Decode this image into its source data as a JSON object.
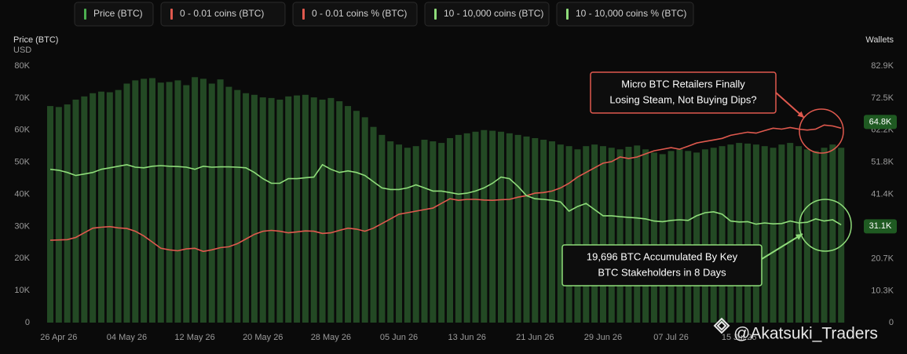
{
  "chart_data": {
    "type": "bar",
    "y_title": "Price (BTC)",
    "y_unit": "USD",
    "y2_title": "Wallets",
    "ylim": [
      0,
      80000
    ],
    "yticks": [
      0,
      {
        "value": 10000,
        "label": "10K"
      },
      {
        "value": 20000,
        "label": "20K"
      },
      {
        "value": 30000,
        "label": "30K"
      },
      {
        "value": 40000,
        "label": "40K"
      },
      {
        "value": 50000,
        "label": "50K"
      },
      {
        "value": 60000,
        "label": "60K"
      },
      {
        "value": 70000,
        "label": "70K"
      },
      {
        "value": 80000,
        "label": "80K"
      }
    ],
    "y2lim": [
      0,
      82900
    ],
    "y2ticks": [
      0,
      {
        "value": 10300,
        "label": "10.3K"
      },
      {
        "value": 20700,
        "label": "20.7K"
      },
      {
        "value": 31100,
        "label": "31.1K"
      },
      {
        "value": 41400,
        "label": "41.4K"
      },
      {
        "value": 51800,
        "label": "51.8K"
      },
      {
        "value": 62200,
        "label": "62.2K"
      },
      {
        "value": 72500,
        "label": "72.5K"
      },
      {
        "value": 82900,
        "label": "82.9K"
      }
    ],
    "y2_markers": [
      {
        "value": 64800,
        "label": "64.8K"
      },
      {
        "value": 31100,
        "label": "31.1K"
      }
    ],
    "categories": [
      null,
      "26 Apr 26",
      null,
      null,
      null,
      null,
      null,
      null,
      null,
      "04 May 26",
      null,
      null,
      null,
      null,
      null,
      null,
      null,
      "12 May 26",
      null,
      null,
      null,
      null,
      null,
      null,
      null,
      "20 May 26",
      null,
      null,
      null,
      null,
      null,
      null,
      null,
      "28 May 26",
      null,
      null,
      null,
      null,
      null,
      null,
      null,
      "05 Jun 26",
      null,
      null,
      null,
      null,
      null,
      null,
      null,
      "13 Jun 26",
      null,
      null,
      null,
      null,
      null,
      null,
      null,
      "21 Jun 26",
      null,
      null,
      null,
      null,
      null,
      null,
      null,
      "29 Jun 26",
      null,
      null,
      null,
      null,
      null,
      null,
      null,
      "07 Jul 26",
      null,
      null,
      null,
      null,
      null,
      null,
      null,
      "15 Jul 26",
      null,
      null,
      null,
      null,
      null,
      null,
      null,
      null,
      null,
      null,
      null,
      null
    ],
    "series": [
      {
        "name": "Price (BTC)",
        "color": "#4caf50",
        "type": "bar",
        "values": [
          67500,
          67200,
          68000,
          69500,
          70500,
          71500,
          72000,
          71800,
          72500,
          74500,
          75500,
          76000,
          76200,
          74800,
          75000,
          75500,
          74000,
          76500,
          76000,
          74500,
          75800,
          73500,
          72500,
          71500,
          71000,
          70200,
          70000,
          69500,
          70500,
          70800,
          71000,
          70200,
          69500,
          70000,
          69000,
          67500,
          66000,
          64000,
          61000,
          58500,
          56500,
          55500,
          54500,
          55000,
          57000,
          56500,
          56000,
          57500,
          58500,
          59000,
          59500,
          60000,
          59800,
          59500,
          59000,
          58500,
          58000,
          57500,
          57000,
          56500,
          55500,
          55000,
          54000,
          55000,
          55500,
          55000,
          54500,
          54000,
          54800,
          55200,
          54000,
          53000,
          52500,
          53500,
          54000,
          53500,
          53000,
          54000,
          54500,
          55000,
          55500,
          56000,
          55800,
          55500,
          55000,
          54500,
          55500,
          56000,
          55000,
          54000,
          53500,
          54500,
          55500,
          54500
        ]
      },
      {
        "name": "0 - 0.01 coins (BTC)",
        "color": "#e0594e",
        "type": "line",
        "axis": "y2",
        "values": [
          26600,
          26700,
          26800,
          27500,
          29000,
          30500,
          30800,
          31000,
          30600,
          30400,
          29500,
          28000,
          26000,
          24000,
          23500,
          23200,
          23800,
          24000,
          23000,
          23500,
          24200,
          24500,
          25500,
          27000,
          28500,
          29500,
          29800,
          29500,
          29000,
          29300,
          29600,
          29500,
          28800,
          29000,
          29800,
          30500,
          30200,
          29500,
          30500,
          32000,
          33500,
          35000,
          35500,
          36000,
          36500,
          37000,
          38500,
          40000,
          39500,
          39800,
          39800,
          39600,
          39500,
          39700,
          39800,
          40500,
          41000,
          41800,
          42000,
          42500,
          43500,
          45000,
          47000,
          48500,
          50000,
          51500,
          52000,
          53500,
          53000,
          53500,
          54500,
          55500,
          56000,
          56500,
          56000,
          57000,
          58000,
          58500,
          59000,
          59500,
          60500,
          61000,
          61500,
          61200,
          62000,
          62800,
          62500,
          63000,
          62500,
          62200,
          62500,
          63800,
          63500,
          62800
        ]
      },
      {
        "name": "10 - 10,000 coins (BTC)",
        "color": "#8fdc7a",
        "type": "line",
        "axis": "y2",
        "values": [
          49500,
          49200,
          48500,
          47500,
          48000,
          48500,
          49500,
          50000,
          50500,
          51000,
          50200,
          50000,
          50500,
          50700,
          50500,
          50400,
          50200,
          49500,
          50500,
          50200,
          50300,
          50300,
          50200,
          50000,
          48500,
          46500,
          45000,
          45000,
          46500,
          46500,
          46800,
          47000,
          51000,
          49500,
          48500,
          49000,
          48500,
          47500,
          45500,
          43500,
          43000,
          43000,
          43500,
          44500,
          43500,
          42500,
          42500,
          42000,
          41500,
          41800,
          42500,
          43500,
          45000,
          47000,
          46500,
          44000,
          41000,
          40000,
          39800,
          39500,
          39000,
          36000,
          37500,
          38500,
          36500,
          34500,
          34500,
          34200,
          34000,
          33800,
          33500,
          32800,
          32600,
          33000,
          33200,
          33000,
          34500,
          35500,
          35800,
          35000,
          32800,
          32500,
          32600,
          31800,
          32200,
          31900,
          32000,
          32800,
          32200,
          32400,
          33500,
          32800,
          33200,
          31600
        ]
      }
    ],
    "legend_only": [
      {
        "name": "0 - 0.01 coins % (BTC)",
        "color": "#e0594e"
      },
      {
        "name": "10 - 10,000 coins % (BTC)",
        "color": "#8fdc7a"
      }
    ],
    "annotations": [
      {
        "lines": [
          "Micro BTC Retailers Finally",
          "Losing Steam, Not Buying Dips?"
        ],
        "color": "#e0594e"
      },
      {
        "lines": [
          "19,696 BTC Accumulated By Key",
          "BTC Stakeholders in 8 Days"
        ],
        "color": "#8fdc7a"
      }
    ],
    "watermark": "@Akatsuki_Traders"
  }
}
